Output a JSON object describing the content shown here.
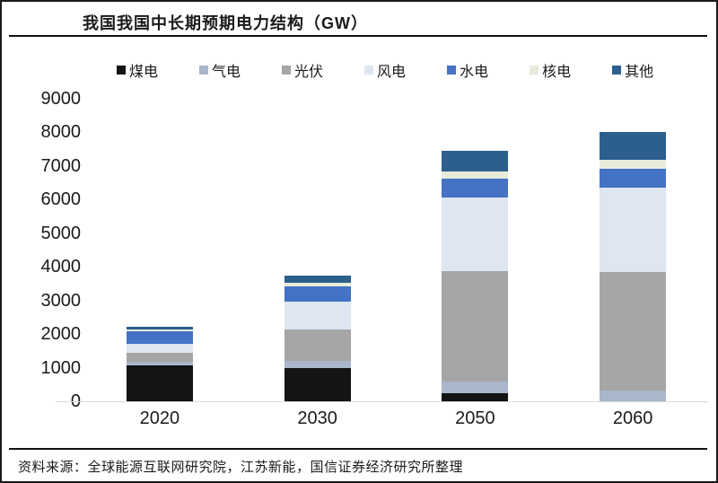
{
  "header": {
    "title": "我国我国中长期预期电力结构（GW）"
  },
  "chart_data": {
    "type": "bar",
    "stacked": true,
    "title": "我国我国中长期预期电力结构（GW）",
    "unit": "GW",
    "categories": [
      "2020",
      "2030",
      "2050",
      "2060"
    ],
    "series": [
      {
        "name": "煤电",
        "color": "#141414",
        "values": [
          1080,
          1000,
          250,
          0
        ]
      },
      {
        "name": "气电",
        "color": "#a9b6cc",
        "values": [
          100,
          200,
          330,
          330
        ]
      },
      {
        "name": "光伏",
        "color": "#a6a6a6",
        "values": [
          250,
          950,
          3300,
          3520
        ]
      },
      {
        "name": "风电",
        "color": "#dde6f1",
        "values": [
          280,
          820,
          2170,
          2510
        ]
      },
      {
        "name": "水电",
        "color": "#4472c4",
        "values": [
          370,
          460,
          580,
          550
        ]
      },
      {
        "name": "核电",
        "color": "#e7ecda",
        "values": [
          50,
          90,
          220,
          270
        ]
      },
      {
        "name": "其他",
        "color": "#2c5f8e",
        "values": [
          80,
          230,
          600,
          820
        ]
      }
    ],
    "totals": [
      2210,
      3750,
      7450,
      8000
    ],
    "ylim": [
      0,
      9000
    ],
    "ytick_step": 1000,
    "yticks": [
      0,
      1000,
      2000,
      3000,
      4000,
      5000,
      6000,
      7000,
      8000,
      9000
    ],
    "grid": false,
    "legend_position": "top"
  },
  "footer": {
    "source": "资料来源：全球能源互联网研究院，江苏新能，国信证券经济研究所整理"
  }
}
